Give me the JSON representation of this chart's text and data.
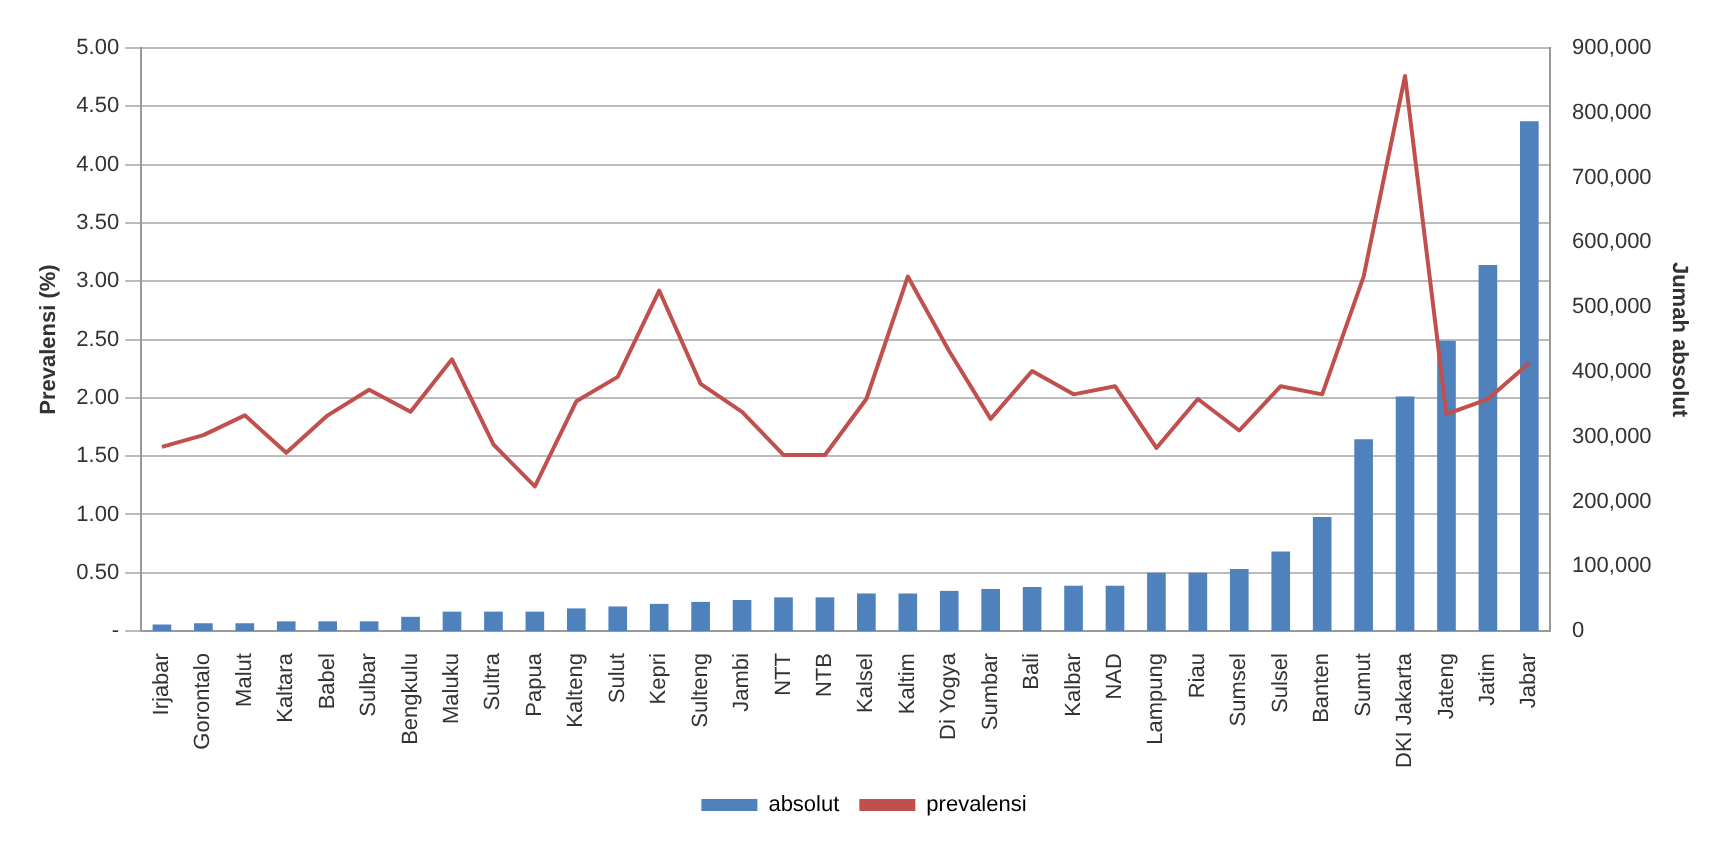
{
  "chart_data": {
    "type": "bar",
    "categories": [
      "Irjabar",
      "Gorontalo",
      "Malut",
      "Kaltara",
      "Babel",
      "Sulbar",
      "Bengkulu",
      "Maluku",
      "Sultra",
      "Papua",
      "Kalteng",
      "Sulut",
      "Kepri",
      "Sulteng",
      "Jambi",
      "NTT",
      "NTB",
      "Kalsel",
      "Kaltim",
      "Di Yogya",
      "Sumbar",
      "Bali",
      "Kalbar",
      "NAD",
      "Lampung",
      "Riau",
      "Sumsel",
      "Sulsel",
      "Banten",
      "Sumut",
      "DKI Jakarta",
      "Jateng",
      "Jatim",
      "Jabar"
    ],
    "series": [
      {
        "name": "absolut",
        "axis": "y2",
        "color": "#4f81bd",
        "values": [
          10000,
          12000,
          12000,
          15000,
          15000,
          15000,
          22000,
          30000,
          30000,
          30000,
          35000,
          38000,
          42000,
          45000,
          48000,
          52000,
          52000,
          58000,
          58000,
          62000,
          65000,
          68000,
          70000,
          70000,
          90000,
          90000,
          96000,
          123000,
          176000,
          296000,
          362000,
          448000,
          565000,
          787000
        ]
      },
      {
        "name": "prevalensi",
        "type": "line",
        "color": "#c0504d",
        "values": [
          1.58,
          1.68,
          1.85,
          1.53,
          1.85,
          2.07,
          1.88,
          2.33,
          1.6,
          1.24,
          1.97,
          2.18,
          2.92,
          2.12,
          1.88,
          1.51,
          1.51,
          1.99,
          3.04,
          2.4,
          1.82,
          2.23,
          2.03,
          2.1,
          1.57,
          1.99,
          1.72,
          2.1,
          2.03,
          3.04,
          4.76,
          1.86,
          1.99,
          2.3
        ]
      }
    ],
    "ylabel": "Prevalensi (%)",
    "y2label": "Jumah absolut",
    "ylim": [
      0,
      5
    ],
    "yticks": [
      {
        "value": 0,
        "label": "-"
      },
      {
        "value": 0.5,
        "label": "0.50"
      },
      {
        "value": 1,
        "label": "1.00"
      },
      {
        "value": 1.5,
        "label": "1.50"
      },
      {
        "value": 2,
        "label": "2.00"
      },
      {
        "value": 2.5,
        "label": "2.50"
      },
      {
        "value": 3,
        "label": "3.00"
      },
      {
        "value": 3.5,
        "label": "3.50"
      },
      {
        "value": 4,
        "label": "4.00"
      },
      {
        "value": 4.5,
        "label": "4.50"
      },
      {
        "value": 5,
        "label": "5.00"
      }
    ],
    "y2lim": [
      0,
      900000
    ],
    "y2ticks": [
      0,
      {
        "value": 100000,
        "label": "100,000"
      },
      {
        "value": 200000,
        "label": "200,000"
      },
      {
        "value": 300000,
        "label": "300,000"
      },
      {
        "value": 400000,
        "label": "400,000"
      },
      {
        "value": 500000,
        "label": "500,000"
      },
      {
        "value": 600000,
        "label": "600,000"
      },
      {
        "value": 700000,
        "label": "700,000"
      },
      {
        "value": 800000,
        "label": "800,000"
      },
      {
        "value": 900000,
        "label": "900,000"
      }
    ],
    "grid": "y",
    "legend": "bottom",
    "marker": "none"
  }
}
